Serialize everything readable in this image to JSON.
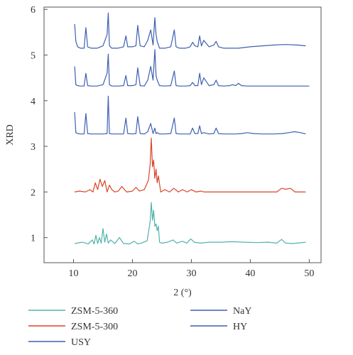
{
  "chart_data": {
    "type": "line",
    "xlabel": "2 (°)",
    "ylabel": "XRD",
    "xlim": [
      5,
      52
    ],
    "ylim": [
      0.45,
      6.05
    ],
    "xticks": [
      10,
      20,
      30,
      40,
      50
    ],
    "yticks": [
      1,
      2,
      3,
      4,
      5,
      6
    ],
    "grid": false,
    "legend_position": "bottom",
    "series": [
      {
        "name": "ZSM-5-360",
        "color": "#4fb3ac",
        "x": [
          10.2,
          11.5,
          12.5,
          13.2,
          13.5,
          13.8,
          14.1,
          14.4,
          14.7,
          15.0,
          15.3,
          15.6,
          15.9,
          16.3,
          17.0,
          17.8,
          18.5,
          19.5,
          20.3,
          20.9,
          21.5,
          22.5,
          23.0,
          23.2,
          23.4,
          23.6,
          23.8,
          24.0,
          24.2,
          24.4,
          24.6,
          25.0,
          26.0,
          26.9,
          27.5,
          28.5,
          29.2,
          29.9,
          30.5,
          31.5,
          33.0,
          35.0,
          37.0,
          39.0,
          41.0,
          43.0,
          44.5,
          45.3,
          46.0,
          47.0,
          48.0,
          49.4
        ],
        "y": [
          0.87,
          0.9,
          0.86,
          0.95,
          0.86,
          1.05,
          0.87,
          1.0,
          0.88,
          1.2,
          0.9,
          1.08,
          0.88,
          0.95,
          0.87,
          1.0,
          0.87,
          0.86,
          0.92,
          0.86,
          0.88,
          0.93,
          1.35,
          1.77,
          1.38,
          1.6,
          1.25,
          1.3,
          1.15,
          1.25,
          0.9,
          0.88,
          0.9,
          0.95,
          0.88,
          0.92,
          0.88,
          0.97,
          0.9,
          0.88,
          0.9,
          0.9,
          0.91,
          0.9,
          0.89,
          0.9,
          0.88,
          0.96,
          0.88,
          0.87,
          0.88,
          0.9
        ]
      },
      {
        "name": "ZSM-5-300",
        "color": "#d9452b",
        "x": [
          10.2,
          11.0,
          12.0,
          12.8,
          13.3,
          13.7,
          14.1,
          14.5,
          14.9,
          15.3,
          15.7,
          16.1,
          16.5,
          17.0,
          17.6,
          18.2,
          19.0,
          20.0,
          20.6,
          21.2,
          22.0,
          22.7,
          23.0,
          23.2,
          23.4,
          23.6,
          23.8,
          24.0,
          24.2,
          24.4,
          24.8,
          25.5,
          26.3,
          27.0,
          27.8,
          28.5,
          29.3,
          30.0,
          30.8,
          31.6,
          32.2,
          33.5,
          35.0,
          37.0,
          39.0,
          41.0,
          43.0,
          44.5,
          45.3,
          46.0,
          46.8,
          47.6,
          48.5,
          49.4
        ],
        "y": [
          2.0,
          2.02,
          2.0,
          2.05,
          2.0,
          2.2,
          2.05,
          2.28,
          2.12,
          2.25,
          2.0,
          2.15,
          2.05,
          2.0,
          2.02,
          2.12,
          2.0,
          2.02,
          2.1,
          2.02,
          2.05,
          2.25,
          2.6,
          3.18,
          2.55,
          2.7,
          2.3,
          2.5,
          2.2,
          2.35,
          2.0,
          2.05,
          2.0,
          2.08,
          2.0,
          2.05,
          2.0,
          2.05,
          2.0,
          2.02,
          2.0,
          2.0,
          2.0,
          2.0,
          2.0,
          2.0,
          2.0,
          2.0,
          2.08,
          2.06,
          2.08,
          2.0,
          2.0,
          2.0
        ]
      },
      {
        "name": "USY",
        "color": "#3e5fb0",
        "x": [
          10.2,
          10.4,
          10.7,
          11.2,
          11.8,
          12.1,
          12.4,
          13.0,
          14.0,
          15.0,
          15.7,
          15.9,
          16.1,
          16.5,
          17.5,
          18.5,
          18.9,
          19.2,
          20.0,
          20.6,
          20.9,
          21.3,
          22.0,
          22.6,
          23.1,
          23.5,
          23.8,
          24.0,
          24.2,
          24.6,
          25.5,
          26.5,
          27.1,
          27.4,
          28.0,
          29.0,
          29.8,
          30.2,
          30.6,
          31.1,
          31.4,
          31.7,
          32.1,
          33.0,
          33.8,
          34.2,
          34.6,
          35.5,
          36.5,
          37.5,
          38.5,
          39.5,
          40.5,
          42.0,
          44.0,
          45.5,
          46.5,
          47.5,
          48.5,
          49.4
        ],
        "y": [
          3.75,
          3.3,
          3.28,
          3.27,
          3.27,
          3.72,
          3.28,
          3.27,
          3.27,
          3.27,
          3.28,
          4.1,
          3.28,
          3.27,
          3.27,
          3.27,
          3.62,
          3.28,
          3.27,
          3.28,
          3.65,
          3.28,
          3.27,
          3.32,
          3.5,
          3.28,
          3.4,
          3.28,
          3.3,
          3.27,
          3.27,
          3.28,
          3.62,
          3.28,
          3.27,
          3.27,
          3.27,
          3.4,
          3.28,
          3.28,
          3.45,
          3.28,
          3.3,
          3.27,
          3.28,
          3.4,
          3.28,
          3.27,
          3.27,
          3.27,
          3.28,
          3.3,
          3.28,
          3.27,
          3.27,
          3.28,
          3.3,
          3.32,
          3.3,
          3.27
        ]
      },
      {
        "name": "NaY",
        "color": "#3e5fb0",
        "x": [
          10.2,
          10.4,
          10.7,
          11.2,
          11.8,
          12.1,
          12.4,
          13.0,
          14.0,
          15.0,
          15.7,
          15.9,
          16.1,
          16.5,
          17.5,
          18.5,
          18.9,
          19.2,
          20.0,
          20.6,
          20.9,
          21.3,
          22.0,
          22.6,
          23.1,
          23.5,
          23.8,
          24.0,
          24.2,
          24.6,
          25.5,
          26.5,
          27.1,
          27.4,
          28.0,
          29.0,
          29.8,
          30.2,
          30.6,
          31.1,
          31.4,
          31.7,
          32.1,
          33.0,
          33.8,
          34.2,
          34.6,
          35.5,
          36.5,
          37.0,
          37.5,
          38.0,
          38.5,
          39.5,
          41.0,
          43.0,
          45.0,
          47.0,
          48.5,
          50.0
        ],
        "y": [
          4.75,
          4.35,
          4.33,
          4.32,
          4.32,
          4.6,
          4.33,
          4.32,
          4.32,
          4.35,
          4.6,
          5.02,
          4.35,
          4.32,
          4.32,
          4.33,
          4.55,
          4.33,
          4.33,
          4.35,
          4.72,
          4.33,
          4.32,
          4.45,
          4.75,
          4.45,
          5.12,
          4.55,
          4.45,
          4.33,
          4.32,
          4.33,
          4.65,
          4.33,
          4.32,
          4.32,
          4.33,
          4.4,
          4.33,
          4.33,
          4.6,
          4.35,
          4.5,
          4.33,
          4.35,
          4.45,
          4.33,
          4.32,
          4.33,
          4.35,
          4.33,
          4.38,
          4.33,
          4.32,
          4.32,
          4.32,
          4.32,
          4.32,
          4.32,
          4.32
        ]
      },
      {
        "name": "HY",
        "color": "#3e5fb0",
        "x": [
          10.2,
          10.4,
          10.7,
          11.2,
          11.8,
          12.1,
          12.4,
          13.0,
          14.0,
          15.0,
          15.7,
          15.9,
          16.1,
          16.5,
          17.5,
          18.5,
          18.9,
          19.2,
          20.0,
          20.6,
          20.9,
          21.3,
          22.0,
          22.6,
          23.1,
          23.5,
          23.8,
          24.0,
          24.2,
          24.6,
          25.5,
          26.5,
          27.1,
          27.4,
          28.0,
          29.0,
          29.8,
          30.2,
          30.6,
          31.1,
          31.4,
          31.7,
          32.1,
          33.0,
          33.8,
          34.2,
          34.6,
          35.5,
          36.5,
          38.0,
          40.0,
          42.0,
          44.0,
          46.0,
          48.0,
          49.4
        ],
        "y": [
          5.68,
          5.3,
          5.18,
          5.15,
          5.15,
          5.6,
          5.18,
          5.15,
          5.15,
          5.2,
          5.45,
          5.92,
          5.2,
          5.15,
          5.15,
          5.18,
          5.42,
          5.18,
          5.18,
          5.2,
          5.65,
          5.2,
          5.18,
          5.32,
          5.55,
          5.22,
          5.82,
          5.45,
          5.3,
          5.15,
          5.15,
          5.18,
          5.55,
          5.18,
          5.15,
          5.15,
          5.18,
          5.28,
          5.2,
          5.18,
          5.42,
          5.2,
          5.32,
          5.18,
          5.22,
          5.3,
          5.18,
          5.15,
          5.15,
          5.15,
          5.18,
          5.2,
          5.22,
          5.23,
          5.22,
          5.2
        ]
      }
    ]
  }
}
